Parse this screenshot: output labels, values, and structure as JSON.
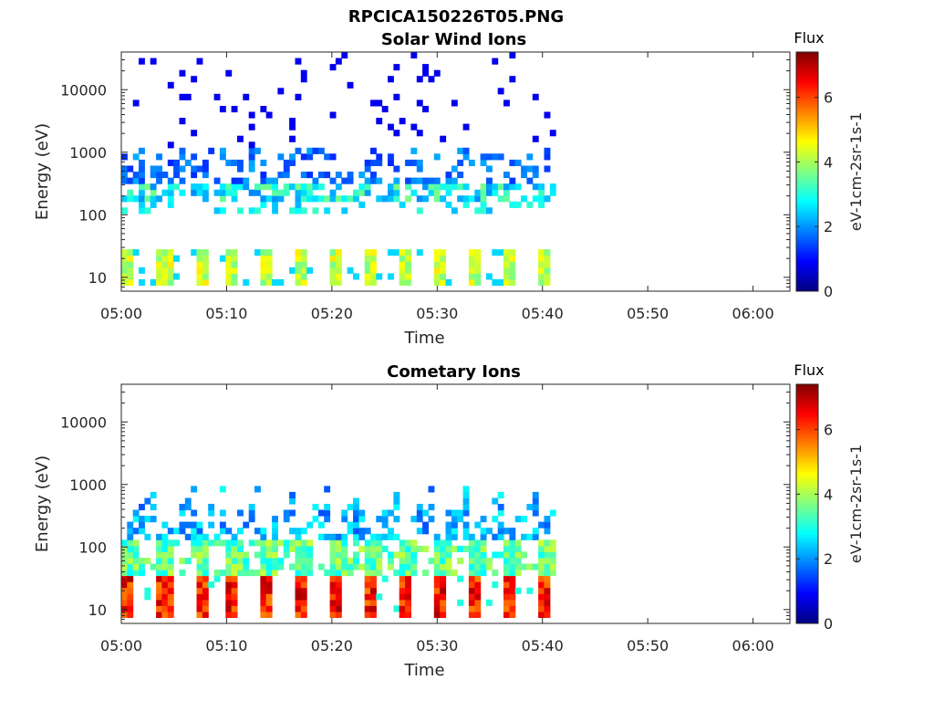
{
  "figure_title": "RPCICA150226T05.PNG",
  "chart_data": [
    {
      "type": "heatmap",
      "title": "Solar Wind Ions",
      "xlabel": "Time",
      "ylabel": "Energy (eV)",
      "x_ticks": [
        "05:00",
        "05:10",
        "05:20",
        "05:30",
        "05:40",
        "05:50",
        "06:00"
      ],
      "x_range_minutes": [
        0,
        63.5
      ],
      "y_scale": "log",
      "y_ticks": [
        "10",
        "100",
        "1000",
        "10000"
      ],
      "y_range": [
        6,
        40000
      ],
      "data_extent_minutes": 41,
      "colorbar": {
        "title": "Flux",
        "label": "eV-1cm-2sr-1s-1",
        "ticks": [
          "0",
          "2",
          "4",
          "6"
        ],
        "range": [
          0,
          7.4
        ]
      },
      "pattern": {
        "sweep_start_minutes": [
          0,
          3.3,
          6.6,
          9.9,
          13.2,
          16.5,
          19.8,
          23.1,
          26.4,
          29.7,
          33.0,
          36.3,
          39.3
        ],
        "low_band_eV": [
          7,
          28
        ],
        "low_band_flux": 4.2,
        "main_band_eV": [
          150,
          350
        ],
        "main_band_flux": 2.8,
        "sparse_max_eV": 40000,
        "sparse_flux": 0.8
      }
    },
    {
      "type": "heatmap",
      "title": "Cometary Ions",
      "xlabel": "Time",
      "ylabel": "Energy (eV)",
      "x_ticks": [
        "05:00",
        "05:10",
        "05:20",
        "05:30",
        "05:40",
        "05:50",
        "06:00"
      ],
      "x_range_minutes": [
        0,
        63.5
      ],
      "y_scale": "log",
      "y_ticks": [
        "10",
        "100",
        "1000",
        "10000"
      ],
      "y_range": [
        6,
        40000
      ],
      "data_extent_minutes": 41,
      "colorbar": {
        "title": "Flux",
        "label": "eV-1cm-2sr-1s-1",
        "ticks": [
          "0",
          "2",
          "4",
          "6"
        ],
        "range": [
          0,
          7.4
        ]
      },
      "pattern": {
        "sweep_start_minutes": [
          0,
          3.3,
          6.6,
          9.9,
          13.2,
          16.5,
          19.8,
          23.1,
          26.4,
          29.7,
          33.0,
          36.3,
          39.3
        ],
        "low_band_eV": [
          7,
          35
        ],
        "low_band_flux": 6.0,
        "mid_band_eV": [
          40,
          120
        ],
        "mid_band_flux": 3.5,
        "upper_edge_eV": [
          200,
          1000
        ],
        "upper_flux": 2.2
      }
    }
  ]
}
